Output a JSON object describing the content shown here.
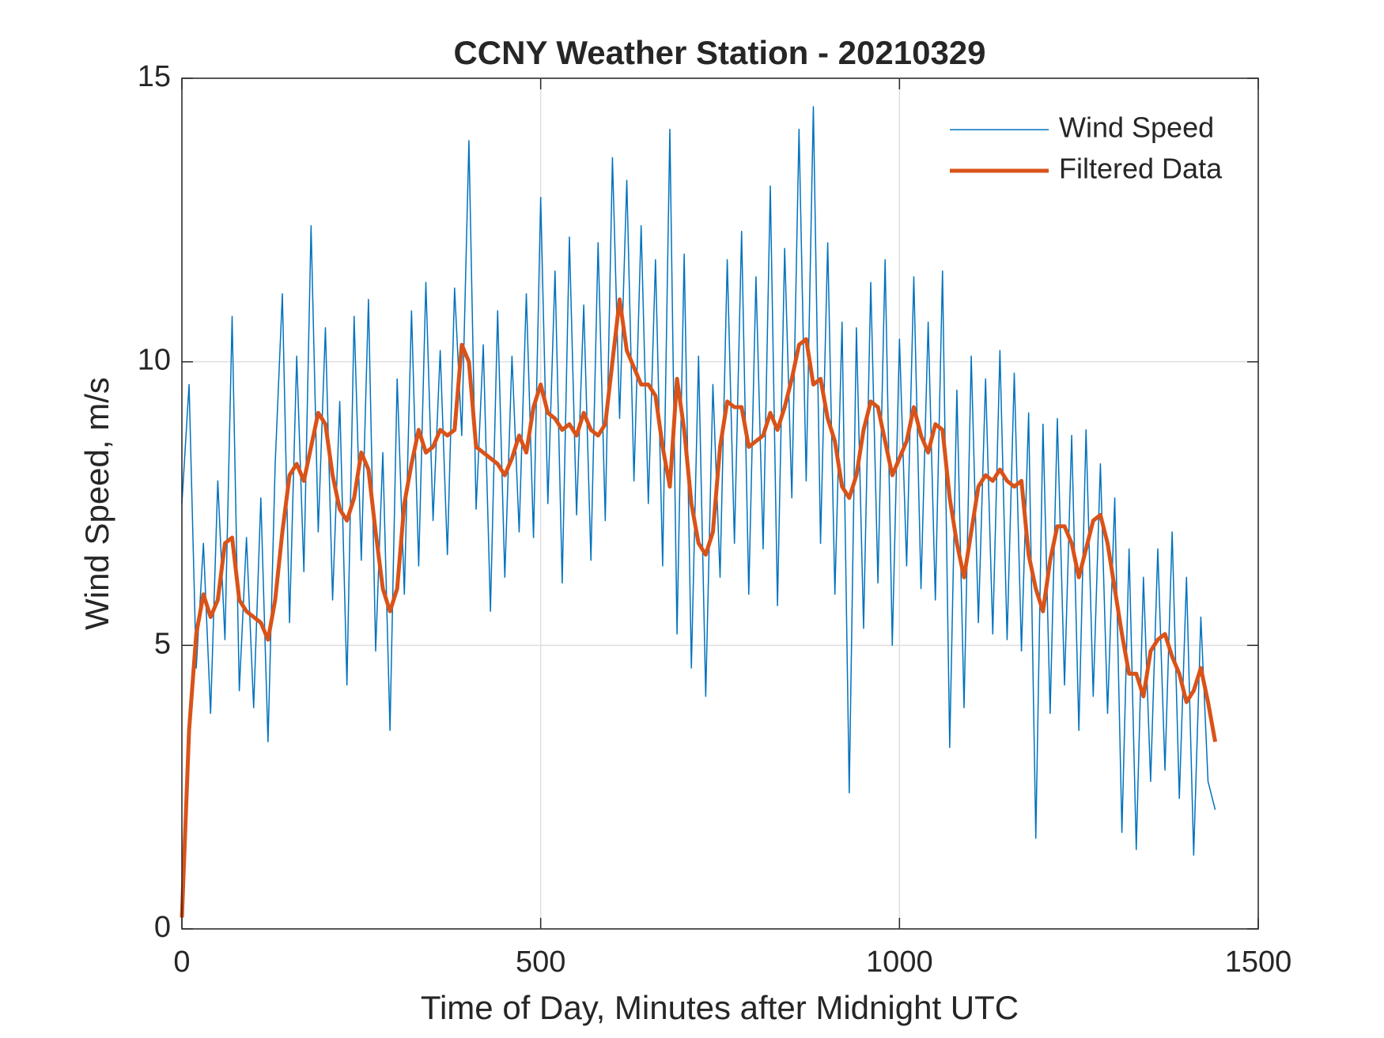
{
  "chart_data": {
    "type": "line",
    "title": "CCNY Weather Station - 20210329",
    "xlabel": "Time of Day, Minutes after Midnight UTC",
    "ylabel": "Wind Speed, m/s",
    "xlim": [
      0,
      1500
    ],
    "xticks": [
      0,
      500,
      1000,
      1500
    ],
    "ylim": [
      0,
      15
    ],
    "yticks": [
      0,
      5,
      10,
      15
    ],
    "grid": true,
    "legend": "northeast",
    "x": [
      0,
      10,
      20,
      30,
      40,
      50,
      60,
      70,
      80,
      90,
      100,
      110,
      120,
      130,
      140,
      150,
      160,
      170,
      180,
      190,
      200,
      210,
      220,
      230,
      240,
      250,
      260,
      270,
      280,
      290,
      300,
      310,
      320,
      330,
      340,
      350,
      360,
      370,
      380,
      390,
      400,
      410,
      420,
      430,
      440,
      450,
      460,
      470,
      480,
      490,
      500,
      510,
      520,
      530,
      540,
      550,
      560,
      570,
      580,
      590,
      600,
      610,
      620,
      630,
      640,
      650,
      660,
      670,
      680,
      690,
      700,
      710,
      720,
      730,
      740,
      750,
      760,
      770,
      780,
      790,
      800,
      810,
      820,
      830,
      840,
      850,
      860,
      870,
      880,
      890,
      900,
      910,
      920,
      930,
      940,
      950,
      960,
      970,
      980,
      990,
      1000,
      1010,
      1020,
      1030,
      1040,
      1050,
      1060,
      1070,
      1080,
      1090,
      1100,
      1110,
      1120,
      1130,
      1140,
      1150,
      1160,
      1170,
      1180,
      1190,
      1200,
      1210,
      1220,
      1230,
      1240,
      1250,
      1260,
      1270,
      1280,
      1290,
      1300,
      1310,
      1320,
      1330,
      1340,
      1350,
      1360,
      1370,
      1380,
      1390,
      1400,
      1410,
      1420,
      1430,
      1440
    ],
    "series": [
      {
        "name": "Wind Speed",
        "color": "#0072BD",
        "width": 1.5,
        "values": [
          7.5,
          9.6,
          4.6,
          6.8,
          3.8,
          7.9,
          5.1,
          10.8,
          4.2,
          6.9,
          3.9,
          7.6,
          3.3,
          8.2,
          11.2,
          5.4,
          10.1,
          6.3,
          12.4,
          7.0,
          10.6,
          5.8,
          9.3,
          4.3,
          10.8,
          6.5,
          11.1,
          4.9,
          8.4,
          3.5,
          9.7,
          5.9,
          10.9,
          6.4,
          11.4,
          7.2,
          10.2,
          6.6,
          11.3,
          8.7,
          13.9,
          7.4,
          10.3,
          5.6,
          10.9,
          6.2,
          10.1,
          7.0,
          11.2,
          6.9,
          12.9,
          7.5,
          11.6,
          6.1,
          12.2,
          7.3,
          11.0,
          6.5,
          12.1,
          7.2,
          13.6,
          9.0,
          13.2,
          7.9,
          12.4,
          7.5,
          11.8,
          6.4,
          14.1,
          5.2,
          11.9,
          4.6,
          10.1,
          4.1,
          9.6,
          6.2,
          11.8,
          6.8,
          12.3,
          5.9,
          11.5,
          6.7,
          13.1,
          5.7,
          12.0,
          7.6,
          14.1,
          7.9,
          14.5,
          6.8,
          12.1,
          5.9,
          10.7,
          2.4,
          10.6,
          5.3,
          11.4,
          6.1,
          11.8,
          5.0,
          10.4,
          6.4,
          11.5,
          6.0,
          10.7,
          5.8,
          11.6,
          3.2,
          9.5,
          3.9,
          10.1,
          5.4,
          9.7,
          5.2,
          10.2,
          5.1,
          9.8,
          4.9,
          9.1,
          1.6,
          8.9,
          3.8,
          9.0,
          4.3,
          8.7,
          3.5,
          8.8,
          4.1,
          8.2,
          3.8,
          7.6,
          1.7,
          6.7,
          1.4,
          6.2,
          2.6,
          6.7,
          2.8,
          7.0,
          2.3,
          6.2,
          1.3,
          5.5,
          2.6,
          2.1
        ]
      },
      {
        "name": "Filtered Data",
        "color": "#D95319",
        "width": 5,
        "values": [
          0.2,
          3.5,
          5.2,
          5.9,
          5.5,
          5.8,
          6.8,
          6.9,
          5.8,
          5.6,
          5.5,
          5.4,
          5.1,
          5.8,
          7.0,
          8.0,
          8.2,
          7.9,
          8.5,
          9.1,
          8.9,
          8.0,
          7.4,
          7.2,
          7.6,
          8.4,
          8.1,
          7.0,
          6.0,
          5.6,
          6.0,
          7.5,
          8.2,
          8.8,
          8.4,
          8.5,
          8.8,
          8.7,
          8.8,
          10.3,
          10.0,
          8.5,
          8.4,
          8.3,
          8.2,
          8.0,
          8.3,
          8.7,
          8.4,
          9.2,
          9.6,
          9.1,
          9.0,
          8.8,
          8.9,
          8.7,
          9.1,
          8.8,
          8.7,
          8.9,
          10.0,
          11.1,
          10.2,
          9.9,
          9.6,
          9.6,
          9.4,
          8.5,
          7.8,
          9.7,
          8.8,
          7.5,
          6.8,
          6.6,
          7.0,
          8.5,
          9.3,
          9.2,
          9.2,
          8.5,
          8.6,
          8.7,
          9.1,
          8.8,
          9.2,
          9.7,
          10.3,
          10.4,
          9.6,
          9.7,
          9.0,
          8.6,
          7.8,
          7.6,
          8.0,
          8.8,
          9.3,
          9.2,
          8.6,
          8.0,
          8.3,
          8.6,
          9.2,
          8.7,
          8.4,
          8.9,
          8.8,
          7.6,
          6.8,
          6.2,
          7.0,
          7.8,
          8.0,
          7.9,
          8.1,
          7.9,
          7.8,
          7.9,
          6.6,
          6.0,
          5.6,
          6.5,
          7.1,
          7.1,
          6.8,
          6.2,
          6.7,
          7.2,
          7.3,
          6.8,
          6.0,
          5.2,
          4.5,
          4.5,
          4.1,
          4.9,
          5.1,
          5.2,
          4.8,
          4.5,
          4.0,
          4.2,
          4.6,
          4.0,
          3.3
        ]
      }
    ]
  }
}
